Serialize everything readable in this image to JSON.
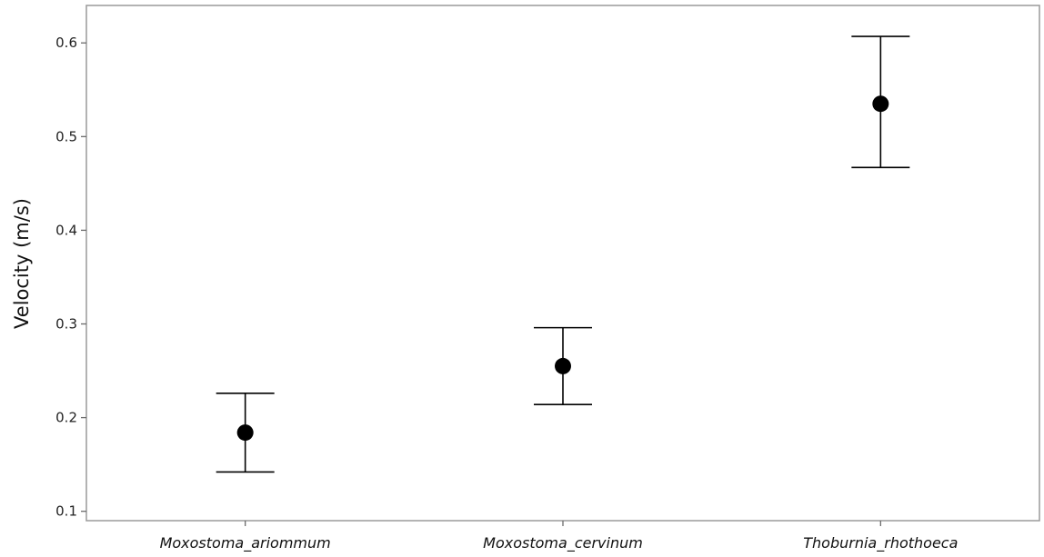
{
  "chart_data": {
    "type": "scatter",
    "title": "",
    "xlabel": "",
    "ylabel": "Velocity (m/s)",
    "ylim": [
      0.09,
      0.64
    ],
    "yticks": [
      "0.1",
      "0.2",
      "0.3",
      "0.4",
      "0.5",
      "0.6"
    ],
    "grid": false,
    "categories": [
      "Moxostoma_ariommum",
      "Moxostoma_cervinum",
      "Thoburnia_rhothoeca"
    ],
    "values": [
      0.184,
      0.255,
      0.535
    ],
    "error_low": [
      0.142,
      0.214,
      0.467
    ],
    "error_high": [
      0.226,
      0.296,
      0.607
    ],
    "colors": {
      "marker": "#000000",
      "error_bar": "#000000",
      "frame": "#9a9a9a"
    }
  }
}
